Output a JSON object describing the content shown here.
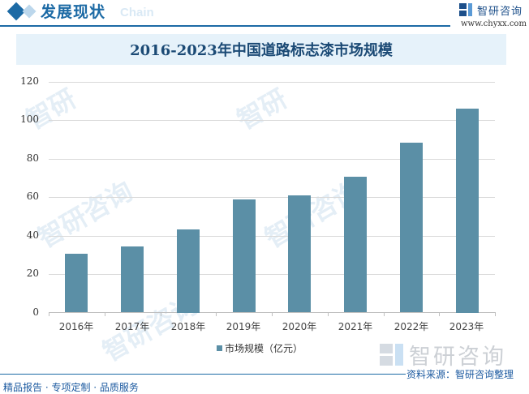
{
  "header": {
    "section_title": "发展现状",
    "section_ghost": "Chain",
    "brand_name": "智研咨询",
    "brand_url": "www.chyxx.com"
  },
  "chart_title": "2016-2023年中国道路标志漆市场规模",
  "legend": {
    "label": "市场规模（亿元）",
    "color": "#5b8fa6"
  },
  "watermark_brand": "智研咨询",
  "footer": {
    "source": "资料来源：智研咨询整理",
    "tagline": "精品报告 · 专项定制 · 品质服务"
  },
  "colors": {
    "accent": "#1c6aa5",
    "bar": "#5b8fa6",
    "title_bg": "#e6f2fa"
  },
  "chart_data": {
    "type": "bar",
    "title": "2016-2023年中国道路标志漆市场规模",
    "categories": [
      "2016年",
      "2017年",
      "2018年",
      "2019年",
      "2020年",
      "2021年",
      "2022年",
      "2023年"
    ],
    "series": [
      {
        "name": "市场规模（亿元）",
        "values": [
          30.5,
          34.3,
          43.2,
          58.7,
          60.8,
          70.5,
          88.2,
          105.9
        ]
      }
    ],
    "xlabel": "",
    "ylabel": "",
    "ylim": [
      0,
      120
    ],
    "yticks": [
      0,
      20,
      40,
      60,
      80,
      100,
      120
    ],
    "grid": true,
    "legend_position": "bottom"
  }
}
